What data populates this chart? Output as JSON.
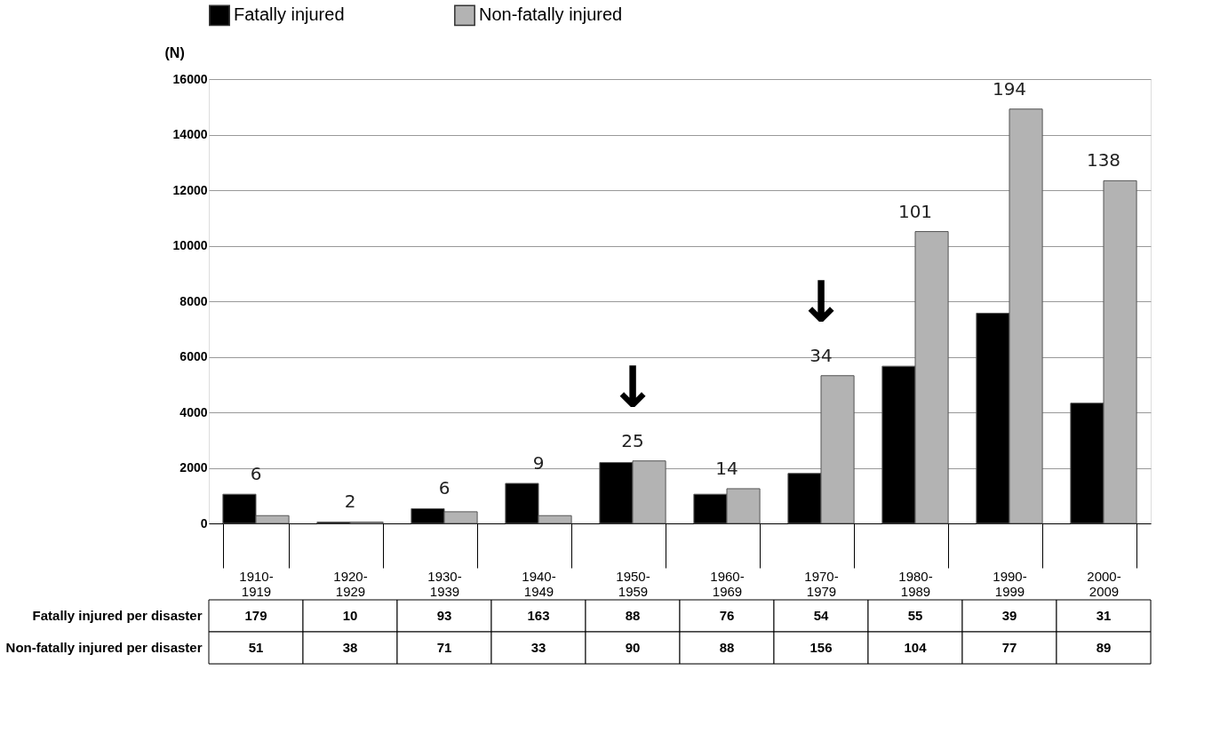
{
  "chart_data": {
    "type": "bar",
    "ylabel": "(N)",
    "categories": [
      "1910-1919",
      "1920-1929",
      "1930-1939",
      "1940-1949",
      "1950-1959",
      "1960-1969",
      "1970-1979",
      "1980-1989",
      "1990-1999",
      "2000-2009"
    ],
    "series": [
      {
        "name": "Fatally injured",
        "color": "#000000",
        "values": [
          1050,
          50,
          530,
          1440,
          2190,
          1050,
          1800,
          5660,
          7570,
          4330
        ]
      },
      {
        "name": "Non-fatally injured",
        "color": "#b3b3b3",
        "values": [
          280,
          50,
          420,
          280,
          2250,
          1250,
          5320,
          10510,
          14920,
          12340
        ]
      }
    ],
    "ylim": [
      0,
      16000
    ],
    "yticks": [
      0,
      2000,
      4000,
      6000,
      8000,
      10000,
      12000,
      14000,
      16000
    ],
    "grid": "y",
    "legend": "top",
    "annotations": [
      {
        "text": "6",
        "x": "1910-1919",
        "y": 1050
      },
      {
        "text": "2",
        "x": "1920-1929",
        "y": 50
      },
      {
        "text": "6",
        "x": "1930-1939",
        "y": 530
      },
      {
        "text": "9",
        "x": "1940-1949",
        "y": 1440
      },
      {
        "text": "25",
        "x": "1950-1959",
        "y": 2250
      },
      {
        "text": "14",
        "x": "1960-1969",
        "y": 1250
      },
      {
        "text": "34",
        "x": "1970-1979",
        "y": 5320
      },
      {
        "text": "101",
        "x": "1980-1989",
        "y": 10510
      },
      {
        "text": "194",
        "x": "1990-1999",
        "y": 14920
      },
      {
        "text": "138",
        "x": "2000-2009",
        "y": 12340
      },
      {
        "text": "↓",
        "x": "1950-1959",
        "y": 2250
      },
      {
        "text": "↓",
        "x": "1970-1979",
        "y": 5320
      },
      "Fatally injured per disaster",
      "179",
      "10",
      "93",
      "163",
      "88",
      "76",
      "54",
      "55",
      "39",
      "31",
      "Non-fatally injured per disaster",
      "51",
      "38",
      "71",
      "33",
      "90",
      "88",
      "156",
      "104",
      "77",
      "89"
    ]
  }
}
